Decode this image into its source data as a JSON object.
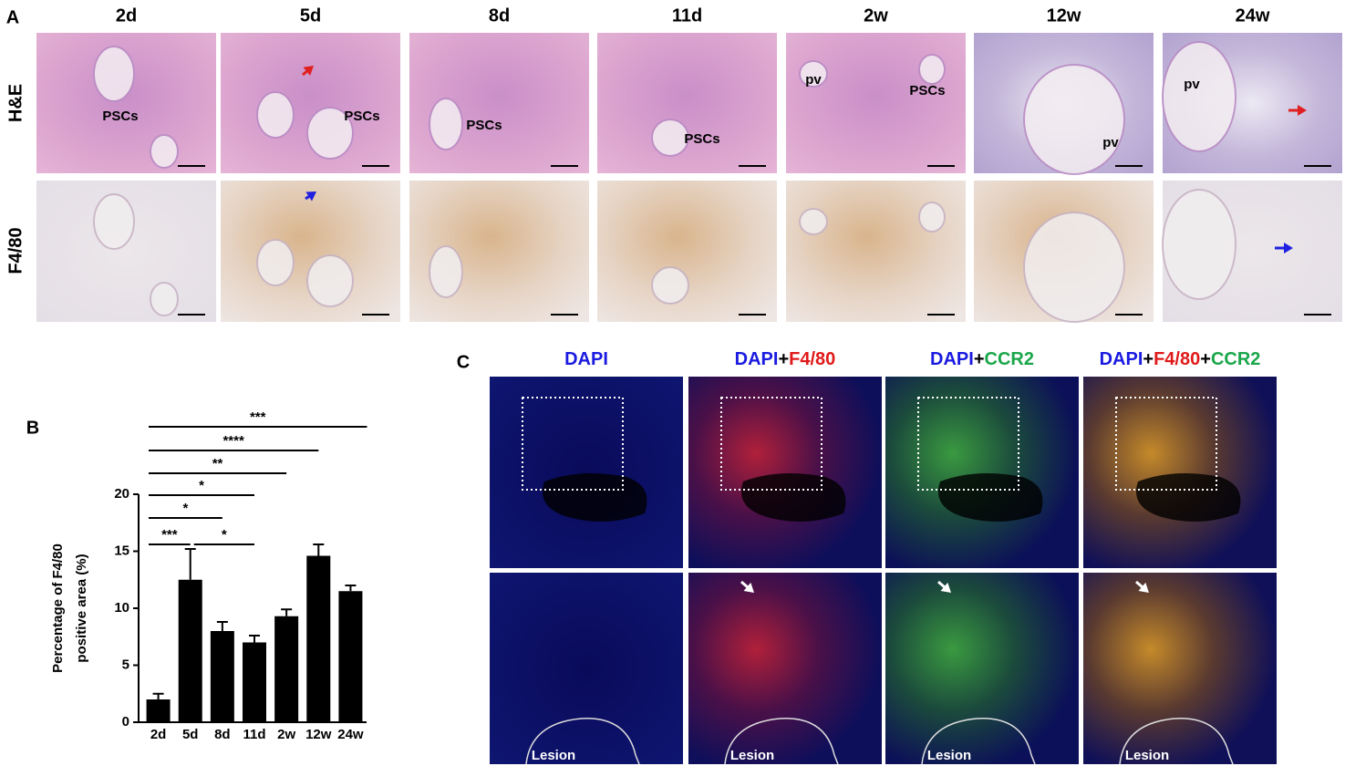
{
  "panel_labels": [
    "A",
    "B",
    "C"
  ],
  "panel_a": {
    "columns": [
      "2d",
      "5d",
      "8d",
      "11d",
      "2w",
      "12w",
      "24w"
    ],
    "rows": [
      "H&E",
      "F4/80"
    ],
    "he_labels": [
      [
        "PSCs"
      ],
      [
        "PSCs"
      ],
      [
        "PSCs"
      ],
      [
        "PSCs"
      ],
      [
        "pv",
        "PSCs"
      ],
      [
        "pv"
      ],
      [
        "pv"
      ]
    ]
  },
  "chart_data": {
    "type": "bar",
    "y_label": [
      "Percentage of F4/80",
      "positive area (%)"
    ],
    "categories": [
      "2d",
      "5d",
      "8d",
      "11d",
      "2w",
      "12w",
      "24w"
    ],
    "values": [
      2.0,
      12.5,
      8.0,
      7.0,
      9.3,
      14.6,
      11.5
    ],
    "errors": [
      0.5,
      2.7,
      0.8,
      0.6,
      0.6,
      1.0,
      0.5
    ],
    "color": "#000000",
    "ylim": [
      0,
      20
    ],
    "yticks": [
      0,
      5,
      10,
      15,
      20
    ],
    "significance": [
      {
        "from": "2d",
        "to": "24w",
        "label": "***"
      },
      {
        "from": "2d",
        "to": "12w",
        "label": "****"
      },
      {
        "from": "2d",
        "to": "2w",
        "label": "**"
      },
      {
        "from": "2d",
        "to": "11d",
        "label": "*"
      },
      {
        "from": "2d",
        "to": "8d",
        "label": "*"
      },
      {
        "from": "2d",
        "to": "5d",
        "label": "***"
      },
      {
        "from": "5d",
        "to": "11d",
        "label": "*"
      }
    ]
  },
  "panel_c": {
    "columns": [
      [
        {
          "text": "DAPI",
          "color": "#1a1ae0"
        }
      ],
      [
        {
          "text": "DAPI",
          "color": "#1a1ae0"
        },
        {
          "text": "+",
          "color": "#000000"
        },
        {
          "text": "F4/80",
          "color": "#e01a1a"
        }
      ],
      [
        {
          "text": "DAPI",
          "color": "#1a1ae0"
        },
        {
          "text": "+",
          "color": "#000000"
        },
        {
          "text": "CCR2",
          "color": "#1aa64a"
        }
      ],
      [
        {
          "text": "DAPI",
          "color": "#1a1ae0"
        },
        {
          "text": "+",
          "color": "#000000"
        },
        {
          "text": "F4/80",
          "color": "#e01a1a"
        },
        {
          "text": "+",
          "color": "#000000"
        },
        {
          "text": "CCR2",
          "color": "#1aa64a"
        }
      ]
    ],
    "lesion_labels": [
      "Lesion",
      "Lesion",
      "Lesion",
      "Lesion"
    ]
  }
}
